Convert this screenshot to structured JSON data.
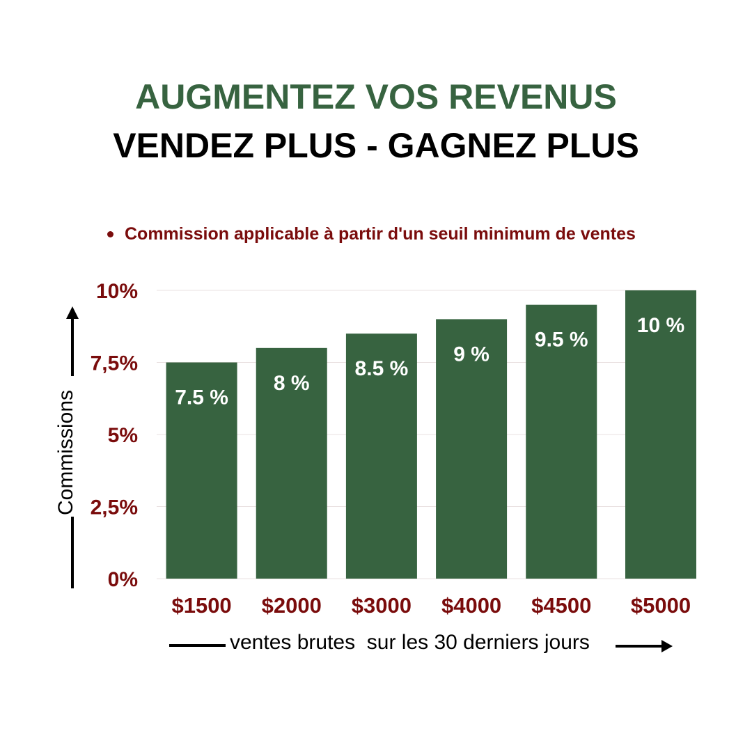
{
  "header": {
    "title": "AUGMENTEZ VOS REVENUS",
    "subtitle": "VENDEZ PLUS - GAGNEZ PLUS",
    "note": "Commission applicable à partir d'un seuil minimum de ventes"
  },
  "colors": {
    "bar": "#376340",
    "tick_text": "#7a0c0c",
    "title_green": "#376340",
    "grid": "#e8e0e0"
  },
  "chart_data": {
    "type": "bar",
    "categories": [
      "$1500",
      "$2000",
      "$3000",
      "$4000",
      "$4500",
      "$5000"
    ],
    "values": [
      7.5,
      8,
      8.5,
      9,
      9.5,
      10
    ],
    "data_labels": [
      "7.5 %",
      "8 %",
      "8.5 %",
      "9 %",
      "9.5 %",
      "10 %"
    ],
    "ylim": [
      0,
      10
    ],
    "yticks": [
      0,
      2.5,
      5,
      7.5,
      10
    ],
    "ytick_labels": [
      "0%",
      "2,5%",
      "5%",
      "7,5%",
      "10%"
    ],
    "xlabel": "ventes brutes  sur les 30 derniers jours",
    "ylabel": "Commissions",
    "grid": true
  }
}
